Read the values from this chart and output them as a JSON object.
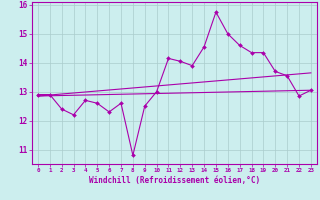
{
  "xlabel": "Windchill (Refroidissement éolien,°C)",
  "bg_color": "#cceeee",
  "grid_color": "#aacccc",
  "line_color": "#aa00aa",
  "x_values": [
    0,
    1,
    2,
    3,
    4,
    5,
    6,
    7,
    8,
    9,
    10,
    11,
    12,
    13,
    14,
    15,
    16,
    17,
    18,
    19,
    20,
    21,
    22,
    23
  ],
  "main_line": [
    12.9,
    12.9,
    12.4,
    12.2,
    12.7,
    12.6,
    12.3,
    12.6,
    10.8,
    12.5,
    13.0,
    14.15,
    14.05,
    13.9,
    14.55,
    15.75,
    15.0,
    14.6,
    14.35,
    14.35,
    13.7,
    13.55,
    12.85,
    13.05
  ],
  "trend_line1": [
    0,
    12.85,
    23,
    13.05
  ],
  "trend_line2": [
    0,
    12.85,
    23,
    13.65
  ],
  "ylim": [
    10.5,
    16.1
  ],
  "xlim": [
    -0.5,
    23.5
  ],
  "yticks": [
    11,
    12,
    13,
    14,
    15
  ],
  "ytick_top": 16,
  "xtick_fontsize": 4.2,
  "ytick_fontsize": 5.5,
  "xlabel_fontsize": 5.5
}
